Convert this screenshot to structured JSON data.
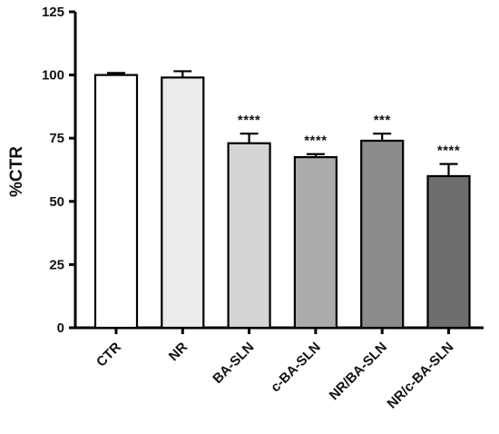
{
  "chart_data": {
    "type": "bar",
    "title": "",
    "xlabel": "",
    "ylabel": "%CTR",
    "ylim": [
      0,
      125
    ],
    "yticks": [
      0,
      25,
      50,
      75,
      100,
      125
    ],
    "grid": false,
    "categories": [
      "CTR",
      "NR",
      "BA-SLN",
      "c-BA-SLN",
      "NR/BA-SLN",
      "NR/c-BA-SLN"
    ],
    "values": [
      100,
      99,
      73,
      67.5,
      74,
      60
    ],
    "errors": [
      0.8,
      2.5,
      3.8,
      1.2,
      2.8,
      4.8
    ],
    "significance": [
      "",
      "",
      "****",
      "****",
      "***",
      "****"
    ],
    "bar_colors": [
      "#ffffff",
      "#ebebeb",
      "#d5d5d5",
      "#ababab",
      "#8c8c8c",
      "#6e6e6e"
    ]
  }
}
